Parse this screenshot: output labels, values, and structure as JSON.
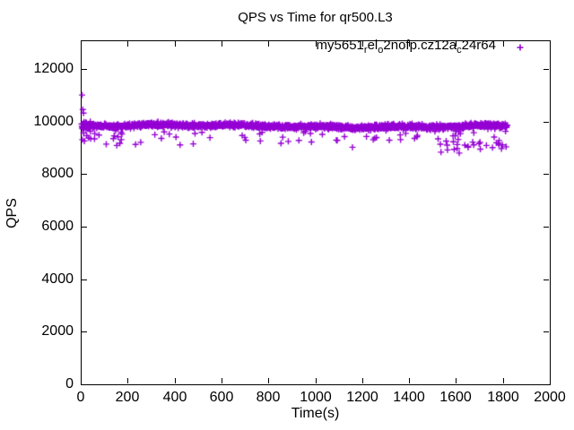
{
  "window": {
    "background": "#ffffff",
    "foreground": "#000000"
  },
  "chart_data": {
    "type": "scatter",
    "title": "QPS vs Time for qr500.L3",
    "xlabel": "Time(s)",
    "ylabel": "QPS",
    "xlim": [
      0,
      2000
    ],
    "ylim": [
      0,
      13100
    ],
    "xticks": [
      0,
      200,
      400,
      600,
      800,
      1000,
      1200,
      1400,
      1600,
      1800,
      2000
    ],
    "yticks": [
      0,
      2000,
      4000,
      6000,
      8000,
      10000,
      12000
    ],
    "grid": false,
    "border": "box-with-mirrored-inward-ticks",
    "legend_position": "top-right-inside",
    "series": [
      {
        "name": "my5651_rel_o2nofp.cz12a_c24r64",
        "name_segments": [
          {
            "text": "my5651"
          },
          {
            "text": "r",
            "subscript": true
          },
          {
            "text": "el"
          },
          {
            "text": "o",
            "subscript": true
          },
          {
            "text": "2nofp.cz12a"
          },
          {
            "text": "c",
            "subscript": true
          },
          {
            "text": "24r64"
          }
        ],
        "marker": "plus",
        "color": "#9400D3",
        "x_range": [
          0,
          1815
        ],
        "summary": {
          "description": "Dense steady band of ~1 sample/second; QPS mostly 9700-10050, sparse low stragglers 9000-9500, heavier low scatter after t=1500 down to ~8840, brief high spike ~11050 at t=0",
          "band_mean_qps": 9865,
          "band_min_qps": 9550,
          "band_max_qps": 10100,
          "overall_min_qps": 8840,
          "overall_max_qps": 11050
        },
        "band": {
          "n_points": 1700,
          "mean": 9865,
          "wave1_amp": 40,
          "wave1_period": 260,
          "wave2_amp": 22,
          "wave2_period": 55,
          "noise_sd": 42,
          "low_tail_prob": 0.028,
          "low_tail_drop_min": 130,
          "low_tail_drop_max": 550,
          "end_region_start": 1500,
          "end_low_tail_prob": 0.09,
          "end_low_tail_drop_max": 950,
          "start_spread_until": 50,
          "start_spread_amp": 220,
          "clip_min": 8780,
          "clip_max": 10120
        },
        "outliers": [
          [
            2,
            11050
          ],
          [
            5,
            10500
          ],
          [
            8,
            10360
          ],
          [
            3,
            9350
          ],
          [
            12,
            9300
          ],
          [
            22,
            9500
          ],
          [
            30,
            9420
          ],
          [
            55,
            9380
          ],
          [
            105,
            9180
          ],
          [
            150,
            9130
          ],
          [
            163,
            9210
          ],
          [
            230,
            9170
          ],
          [
            252,
            9250
          ],
          [
            340,
            9400
          ],
          [
            420,
            9150
          ],
          [
            476,
            9190
          ],
          [
            700,
            9330
          ],
          [
            762,
            9300
          ],
          [
            850,
            9210
          ],
          [
            980,
            9260
          ],
          [
            1090,
            9320
          ],
          [
            1155,
            9060
          ],
          [
            1250,
            9410
          ],
          [
            1312,
            9330
          ],
          [
            1360,
            9350
          ],
          [
            1430,
            9460
          ],
          [
            1520,
            9380
          ],
          [
            1560,
            8960
          ],
          [
            1585,
            9270
          ],
          [
            1610,
            8840
          ],
          [
            1648,
            9060
          ],
          [
            1672,
            9150
          ],
          [
            1700,
            8990
          ],
          [
            1726,
            9130
          ],
          [
            1752,
            9050
          ],
          [
            1790,
            9010
          ]
        ]
      }
    ]
  }
}
